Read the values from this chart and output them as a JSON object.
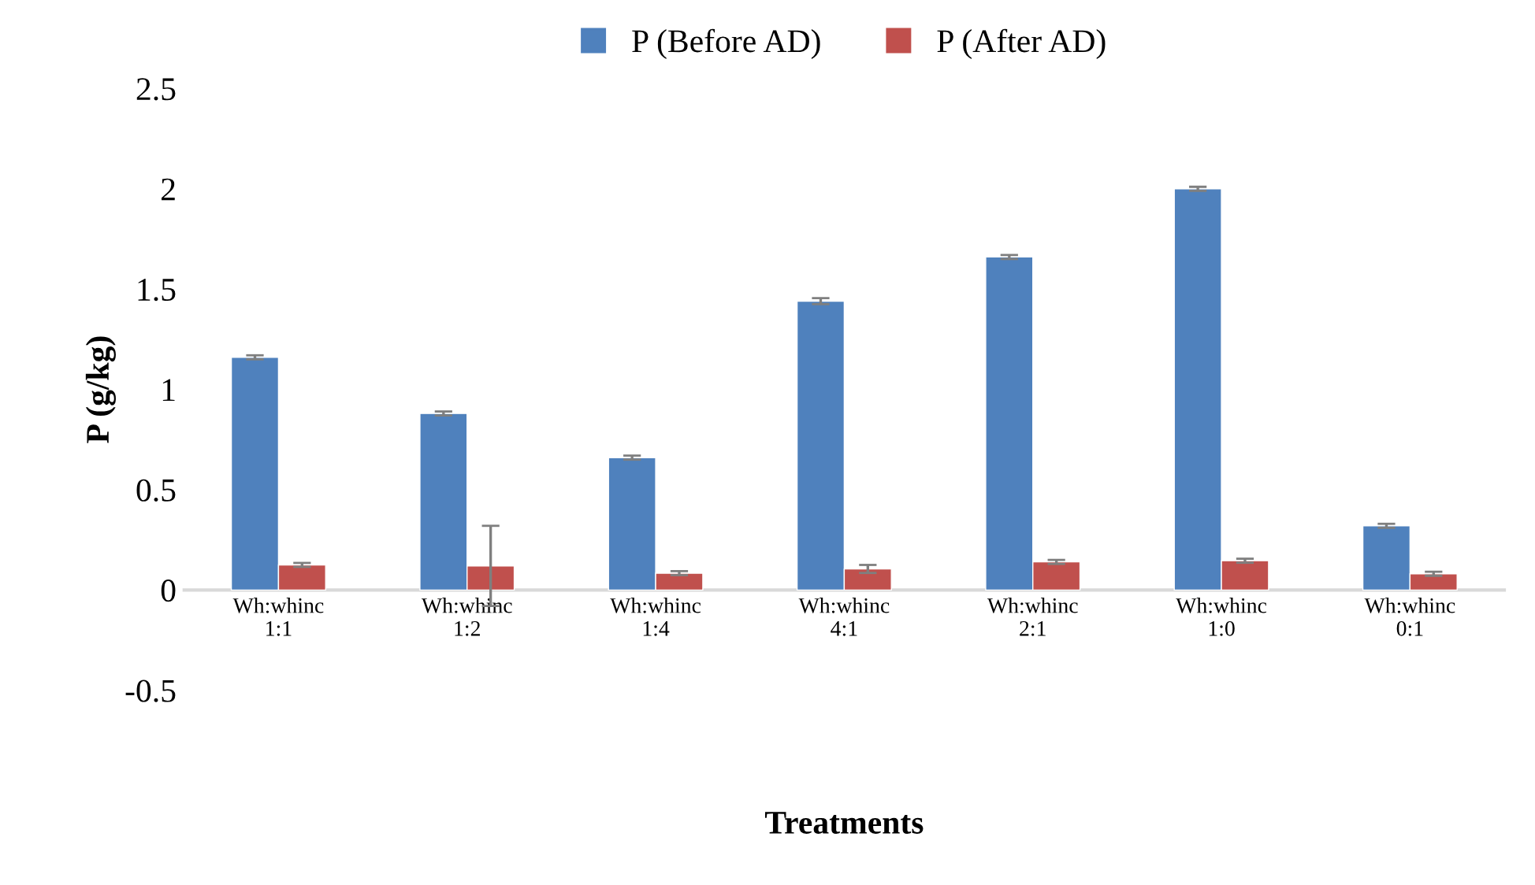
{
  "chart_data": {
    "type": "bar",
    "xlabel": "Treatments",
    "ylabel": "P (g/kg)",
    "categories": [
      "Wh:whinc\n1:1",
      "Wh:whinc\n1:2",
      "Wh:whinc\n1:4",
      "Wh:whinc\n4:1",
      "Wh:whinc\n2:1",
      "Wh:whinc\n1:0",
      "Wh:whinc\n0:1"
    ],
    "series": [
      {
        "name": "P (Before AD)",
        "color": "#4f81bd",
        "values": [
          1.16,
          0.88,
          0.66,
          1.44,
          1.66,
          2.0,
          0.32
        ],
        "errors": [
          0.01,
          0.01,
          0.01,
          0.015,
          0.01,
          0.01,
          0.01
        ]
      },
      {
        "name": "P (After AD)",
        "color": "#c0504d",
        "values": [
          0.125,
          0.12,
          0.084,
          0.105,
          0.14,
          0.146,
          0.081
        ],
        "errors": [
          0.01,
          0.2,
          0.01,
          0.02,
          0.01,
          0.01,
          0.01
        ]
      }
    ],
    "ylim": [
      -0.5,
      2.5
    ],
    "yticks": [
      -0.5,
      0,
      0.5,
      1,
      1.5,
      2,
      2.5
    ],
    "legend": "top"
  }
}
